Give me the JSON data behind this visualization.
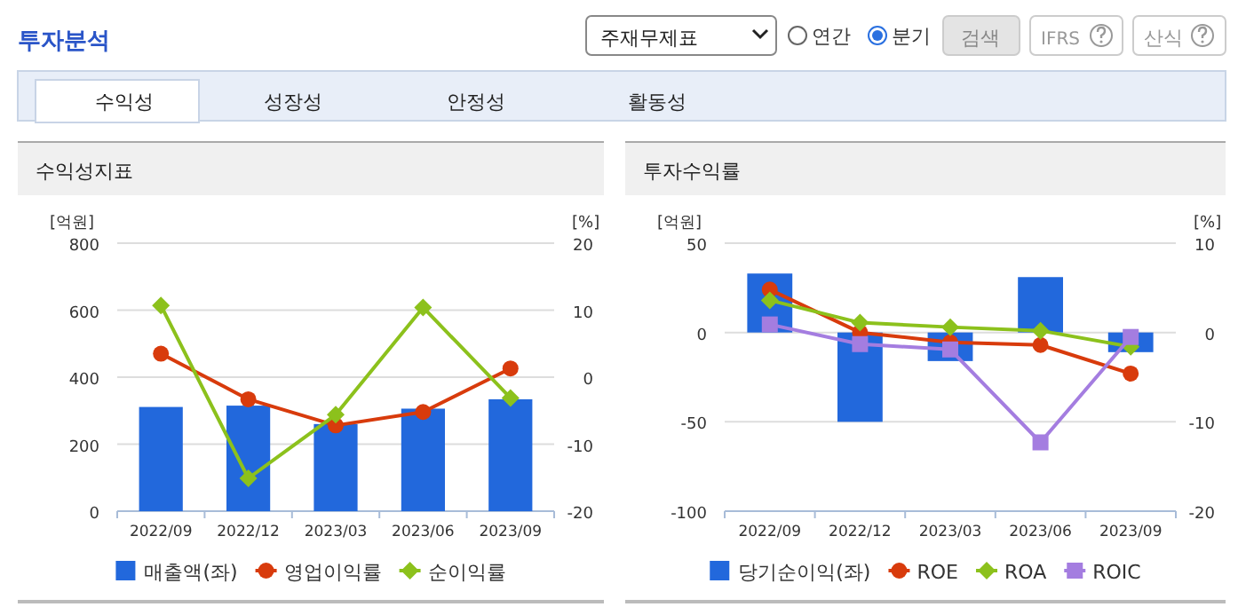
{
  "chart_data": [
    {
      "type": "other",
      "annotations": [
        "투자분석",
        "주재무제표",
        "연간",
        "분기",
        "검색",
        "IFRS",
        "산식",
        "수익성",
        "성장성",
        "안정성",
        "활동성"
      ]
    },
    {
      "type": "bar",
      "title": "수익성지표",
      "ylabel": "[억원]",
      "y2label": "[%]",
      "categories": [
        "2022/09",
        "2022/12",
        "2023/03",
        "2023/06",
        "2023/09"
      ],
      "ylim": [
        0,
        800
      ],
      "yticks": [
        0,
        200,
        400,
        600,
        800
      ],
      "y2lim": [
        -20,
        20
      ],
      "y2ticks": [
        -20,
        -10,
        0,
        10,
        20
      ],
      "grid": "y",
      "legend": "bottom",
      "series": [
        {
          "name": "매출액(좌)",
          "type": "bar",
          "color": "#2268dc",
          "values": [
            311,
            315,
            260,
            306,
            334
          ]
        },
        {
          "name": "영업이익률",
          "type": "line",
          "axis": "y2",
          "marker": "circle",
          "color": "#d83b0c",
          "values": [
            3.5,
            -3.3,
            -7.2,
            -5.2,
            1.3
          ]
        },
        {
          "name": "순이익률",
          "type": "line",
          "axis": "y2",
          "marker": "diamond",
          "color": "#8cc11c",
          "values": [
            10.7,
            -15.1,
            -5.6,
            10.4,
            -3.1
          ]
        }
      ]
    },
    {
      "type": "bar",
      "title": "투자수익률",
      "ylabel": "[억원]",
      "y2label": "[%]",
      "categories": [
        "2022/09",
        "2022/12",
        "2023/03",
        "2023/06",
        "2023/09"
      ],
      "ylim": [
        -100,
        50
      ],
      "yticks": [
        -100,
        -50,
        0,
        50
      ],
      "y2lim": [
        -20,
        10
      ],
      "y2ticks": [
        -20,
        -10,
        0,
        10
      ],
      "grid": "y",
      "legend": "bottom",
      "series": [
        {
          "name": "당기순이익(좌)",
          "type": "bar",
          "color": "#2268dc",
          "values": [
            33,
            -50,
            -16,
            31,
            -11
          ]
        },
        {
          "name": "ROE",
          "type": "line",
          "axis": "y2",
          "marker": "circle",
          "color": "#d83b0c",
          "values": [
            4.8,
            0,
            -1.1,
            -1.4,
            -4.6
          ]
        },
        {
          "name": "ROA",
          "type": "line",
          "axis": "y2",
          "marker": "diamond",
          "color": "#8cc11c",
          "values": [
            3.6,
            1.1,
            0.6,
            0.2,
            -1.6
          ]
        },
        {
          "name": "ROIC",
          "type": "line",
          "axis": "y2",
          "marker": "square",
          "color": "#a47de0",
          "values": [
            0.9,
            -1.3,
            -1.9,
            -12.3,
            -0.5
          ]
        }
      ]
    }
  ]
}
